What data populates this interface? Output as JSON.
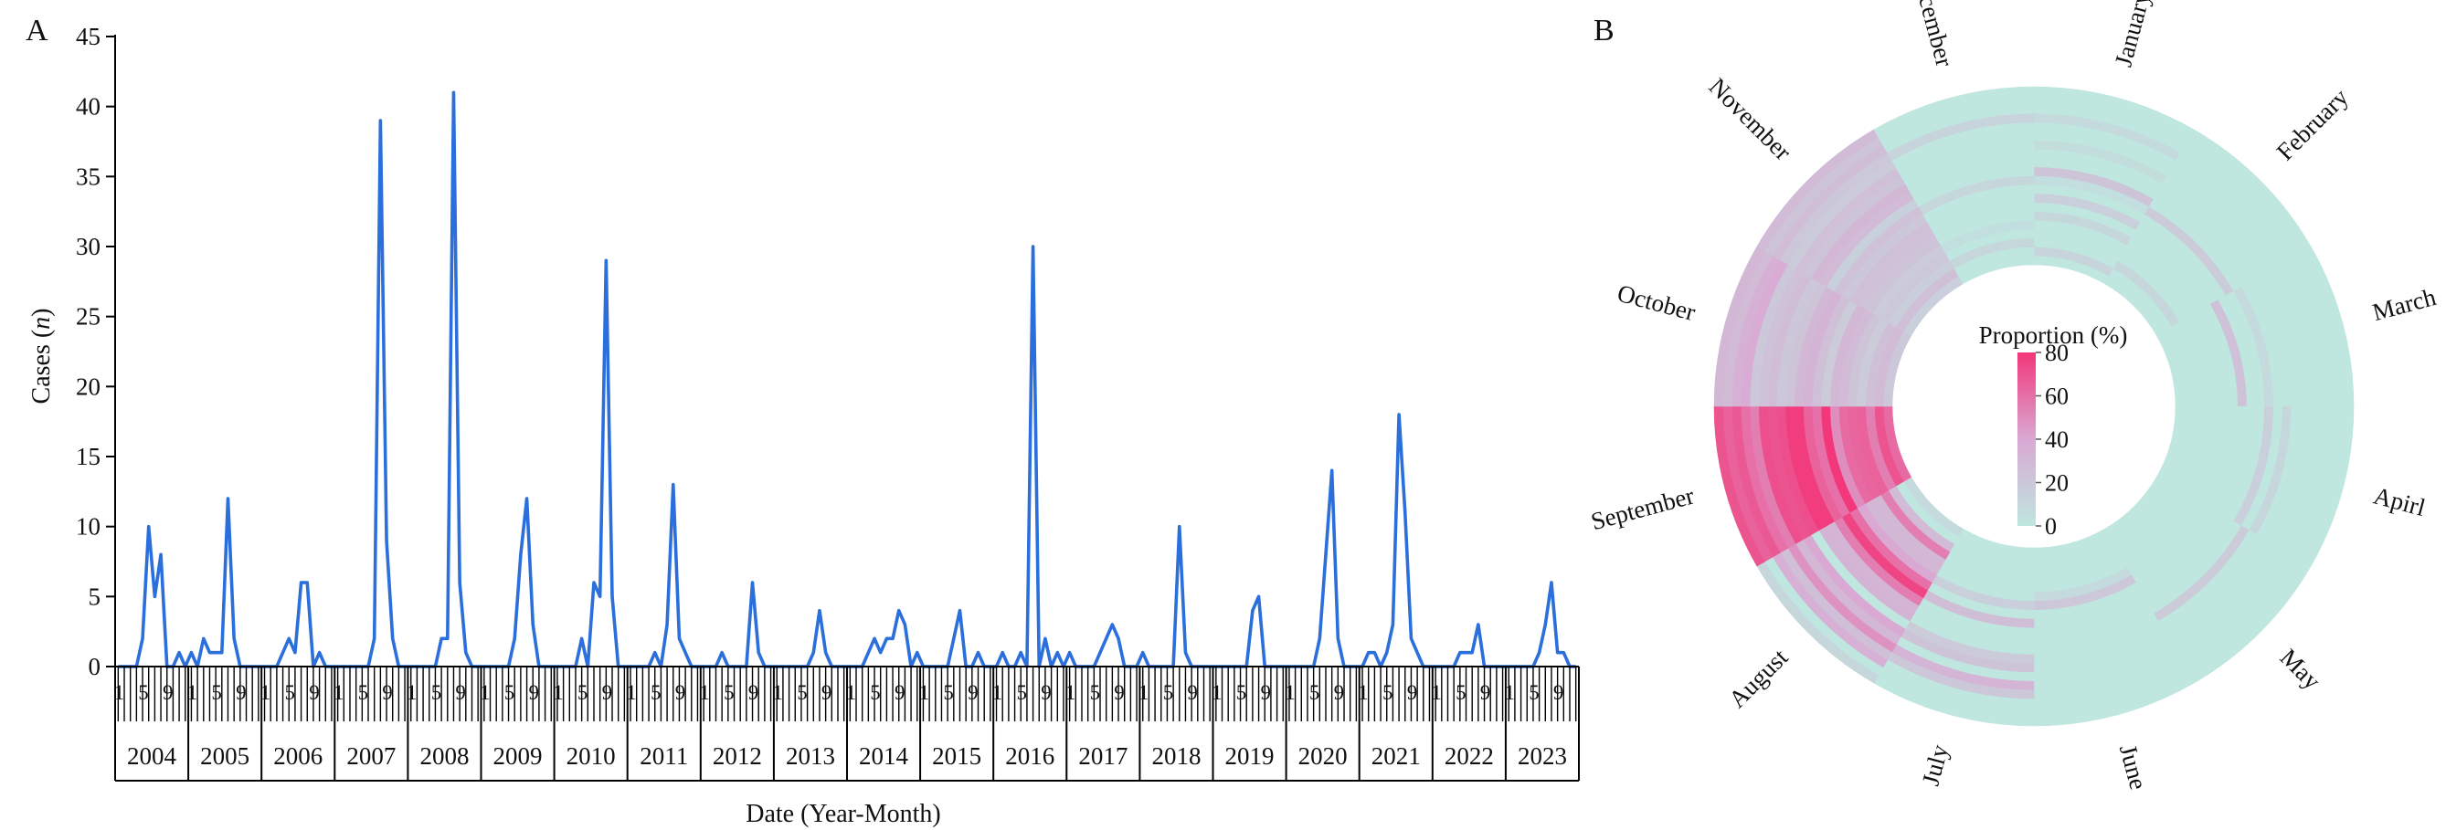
{
  "panels": {
    "a": "A",
    "b": "B"
  },
  "colors": {
    "line": "#2a6fdb",
    "low": "#bfe6df",
    "mid": "#d9a9d3",
    "high": "#f2377a"
  },
  "chart_data": [
    {
      "type": "line",
      "xlabel": "Date (Year-Month)",
      "ylabel_main": "Cases (",
      "ylabel_var": "n",
      "ylabel_end": ")",
      "ylim": [
        0,
        45
      ],
      "yticks": [
        0,
        5,
        10,
        15,
        20,
        25,
        30,
        35,
        40,
        45
      ],
      "years": [
        "2004",
        "2005",
        "2006",
        "2007",
        "2008",
        "2009",
        "2010",
        "2011",
        "2012",
        "2013",
        "2014",
        "2015",
        "2016",
        "2017",
        "2018",
        "2019",
        "2020",
        "2021",
        "2022",
        "2023"
      ],
      "month_tick_labels": [
        "1",
        "5",
        "9"
      ],
      "series": [
        {
          "values": [
            0,
            0,
            0,
            0,
            2,
            10,
            5,
            8,
            0,
            0,
            1,
            0,
            1,
            0,
            2,
            1,
            1,
            1,
            12,
            2,
            0,
            0,
            0,
            0,
            0,
            0,
            0,
            1,
            2,
            1,
            6,
            6,
            0,
            1,
            0,
            0,
            0,
            0,
            0,
            0,
            0,
            0,
            2,
            39,
            9,
            2,
            0,
            0,
            0,
            0,
            0,
            0,
            0,
            2,
            2,
            41,
            6,
            1,
            0,
            0,
            0,
            0,
            0,
            0,
            0,
            2,
            8,
            12,
            3,
            0,
            0,
            0,
            0,
            0,
            0,
            0,
            2,
            0,
            6,
            5,
            29,
            5,
            0,
            0,
            0,
            0,
            0,
            0,
            1,
            0,
            3,
            13,
            2,
            1,
            0,
            0,
            0,
            0,
            0,
            1,
            0,
            0,
            0,
            0,
            6,
            1,
            0,
            0,
            0,
            0,
            0,
            0,
            0,
            0,
            1,
            4,
            1,
            0,
            0,
            0,
            0,
            0,
            0,
            1,
            2,
            1,
            2,
            2,
            4,
            3,
            0,
            1,
            0,
            0,
            0,
            0,
            0,
            2,
            4,
            0,
            0,
            1,
            0,
            0,
            0,
            1,
            0,
            0,
            1,
            0,
            30,
            0,
            2,
            0,
            1,
            0,
            1,
            0,
            0,
            0,
            0,
            1,
            2,
            3,
            2,
            0,
            0,
            0,
            1,
            0,
            0,
            0,
            0,
            0,
            10,
            1,
            0,
            0,
            0,
            0,
            0,
            0,
            0,
            0,
            0,
            0,
            4,
            5,
            0,
            0,
            0,
            0,
            0,
            0,
            0,
            0,
            0,
            2,
            8,
            14,
            2,
            0,
            0,
            0,
            0,
            1,
            1,
            0,
            1,
            3,
            18,
            11,
            2,
            1,
            0,
            0,
            0,
            0,
            0,
            0,
            1,
            1,
            1,
            3,
            0,
            0,
            0,
            0,
            0,
            0,
            0,
            0,
            0,
            1,
            3,
            6,
            1,
            1,
            0,
            0
          ]
        }
      ]
    },
    {
      "type": "heatmap",
      "subtype": "circular",
      "months": [
        "January",
        "February",
        "March",
        "Apirl",
        "May",
        "June",
        "July",
        "August",
        "September",
        "October",
        "November",
        "December"
      ],
      "ring_count": 20,
      "legend_title": "Proportion (%)",
      "legend_ticks": [
        0,
        20,
        40,
        60,
        80
      ],
      "value_range": [
        0,
        80
      ],
      "values": [
        [
          0,
          12,
          0,
          0,
          0,
          10,
          0,
          15,
          0,
          5,
          22,
          0,
          0,
          6,
          0,
          0,
          8,
          0,
          0,
          0
        ],
        [
          0,
          0,
          10,
          0,
          0,
          0,
          0,
          0,
          0,
          18,
          0,
          0,
          0,
          0,
          0,
          0,
          0,
          0,
          0,
          0
        ],
        [
          0,
          0,
          0,
          0,
          0,
          0,
          0,
          24,
          0,
          0,
          8,
          0,
          0,
          0,
          0,
          0,
          0,
          0,
          0,
          0
        ],
        [
          0,
          0,
          0,
          0,
          0,
          0,
          0,
          0,
          0,
          0,
          15,
          0,
          10,
          0,
          0,
          0,
          0,
          0,
          0,
          0
        ],
        [
          0,
          0,
          0,
          0,
          0,
          0,
          0,
          0,
          0,
          0,
          0,
          18,
          0,
          0,
          0,
          0,
          0,
          0,
          0,
          0
        ],
        [
          0,
          0,
          0,
          0,
          0,
          8,
          20,
          0,
          0,
          0,
          0,
          0,
          0,
          0,
          0,
          0,
          0,
          0,
          0,
          0
        ],
        [
          0,
          0,
          0,
          0,
          0,
          0,
          15,
          0,
          26,
          0,
          0,
          0,
          18,
          22,
          0,
          32,
          20,
          0,
          0,
          0
        ],
        [
          8,
          0,
          28,
          55,
          30,
          30,
          40,
          60,
          75,
          55,
          32,
          33,
          0,
          40,
          30,
          48,
          25,
          35,
          0,
          10
        ],
        [
          62,
          70,
          55,
          65,
          64,
          62,
          50,
          80,
          60,
          65,
          78,
          78,
          72,
          70,
          72,
          55,
          60,
          68,
          65,
          70
        ],
        [
          20,
          28,
          25,
          18,
          22,
          28,
          30,
          18,
          25,
          33,
          30,
          22,
          20,
          26,
          24,
          20,
          38,
          35,
          28,
          30
        ],
        [
          15,
          25,
          16,
          20,
          18,
          22,
          24,
          25,
          20,
          24,
          14,
          28,
          30,
          22,
          25,
          18,
          20,
          26,
          22,
          28
        ],
        [
          0,
          0,
          10,
          0,
          5,
          0,
          0,
          0,
          0,
          10,
          0,
          0,
          0,
          0,
          0,
          0,
          12,
          0,
          0,
          0
        ]
      ]
    }
  ]
}
